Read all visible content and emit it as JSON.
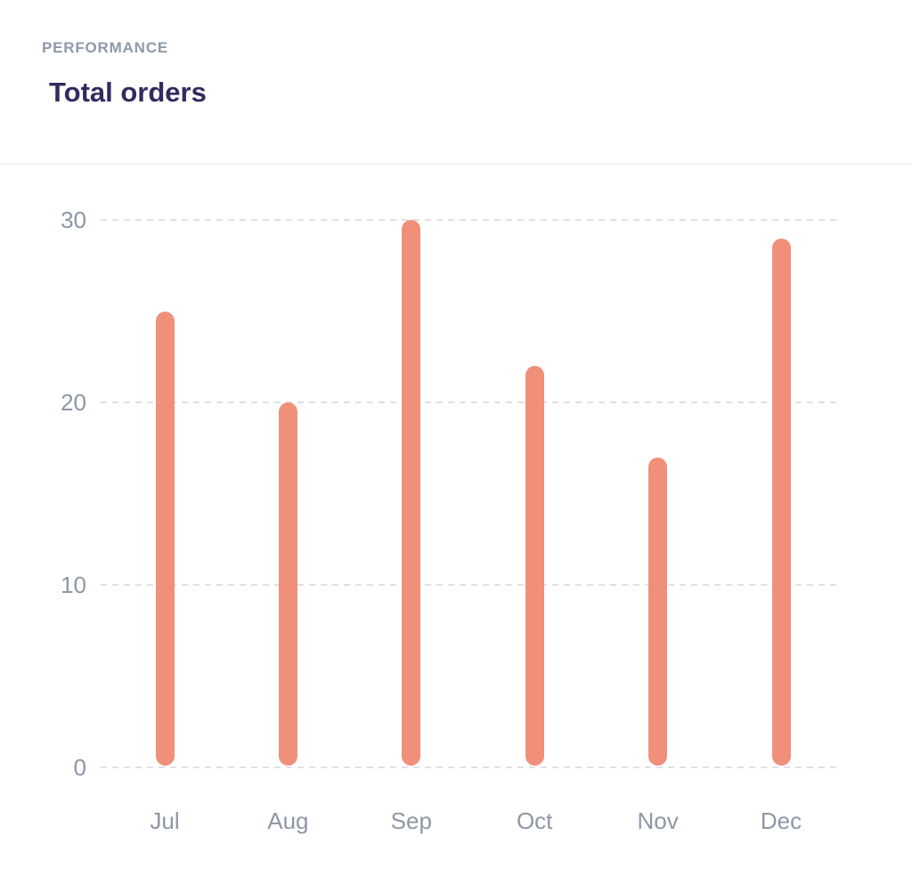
{
  "header": {
    "eyebrow": "PERFORMANCE",
    "title": "Total orders"
  },
  "colors": {
    "bar": "#f0907b",
    "title_text": "#322b5f",
    "eyebrow_text": "#8e99ab",
    "axis_label": "#8d97a7",
    "gridline": "#e0e0e6",
    "background": "#ffffff"
  },
  "chart_data": {
    "type": "bar",
    "title": "Total orders",
    "categories": [
      "Jul",
      "Aug",
      "Sep",
      "Oct",
      "Nov",
      "Dec"
    ],
    "values": [
      25,
      20,
      30,
      22,
      17,
      29
    ],
    "series_name": "Total orders",
    "xlabel": "",
    "ylabel": "",
    "y_ticks": [
      0,
      10,
      20,
      30
    ],
    "ylim": [
      0,
      32.5
    ],
    "grid": "horizontal-dashed",
    "legend": "none",
    "bar_style": "rounded-pill"
  }
}
